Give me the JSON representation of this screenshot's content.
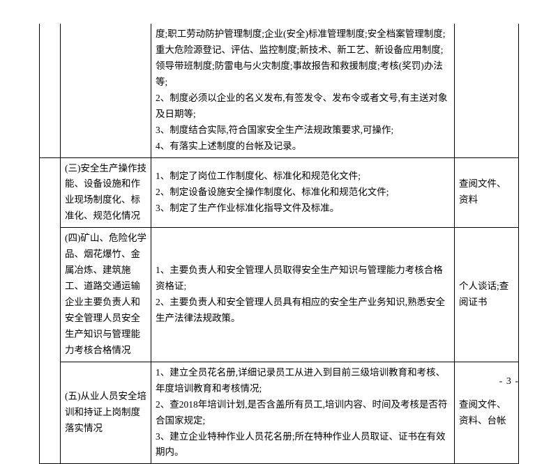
{
  "font_family": "SimSun",
  "page_label": "- 3 -",
  "rows": [
    {
      "col0": "",
      "col1": "",
      "col2": "度;职工劳动防护管理制度;企业(安全)标准管理制度;安全档案管理制度;重大危险源登记、评估、监控制度;新技术、新工艺、新设备应用制度;领导带班制度;防雷电与火灾制度;事故报告和救援制度;考核(奖罚)办法等;\n2、制度必须以企业的名义发布,有签发令、发布令或者文号,有主送对象及日期等;\n3、制度结合实际,符合国家安全生产法规政策要求,可操作;\n4、有落实上述制度的台帐及记录。",
      "col3": ""
    },
    {
      "col1": "(三)安全生产操作技能、设备设施和作业现场制度化、标准化、规范化情况",
      "col2": "1、制定了岗位工作制度化、标准化和规范化文件;\n2、制定设备设施安全操作制度化、标准化和规范化文件;\n3、制定了生产作业标准化指导文件及标准。",
      "col3": "查阅文件、资料"
    },
    {
      "col1": "(四)矿山、危险化学品、烟花爆竹、金属冶炼、建筑施工、道路交通运输企业主要负责人和安全管理人员安全生产知识与管理能力考核合格情况",
      "col2": "1、主要负责人和安全管理人员取得安全生产知识与管理能力考核合格资格证;\n2、主要负责人和安全管理人员具有相应的安全生产业务知识,熟悉安全生产法律法规政策。",
      "col3": "个人谈话;查阅证书"
    },
    {
      "col1": "(五)从业人员安全培训和持证上岗制度落实情况",
      "col2": "1、建立全员花名册,详细记录员工从进入到目前三级培训教育和考核、年度培训教育和考核情况;\n2、查2018年培训计划,是否含盖所有员工,培训内容、时间及考核是否符合国家规定;\n3、建立企业特种作业人员花名册;所在特种作业人员取证、证书在有效期内。",
      "col3": "查阅文件、资料、台帐"
    }
  ]
}
